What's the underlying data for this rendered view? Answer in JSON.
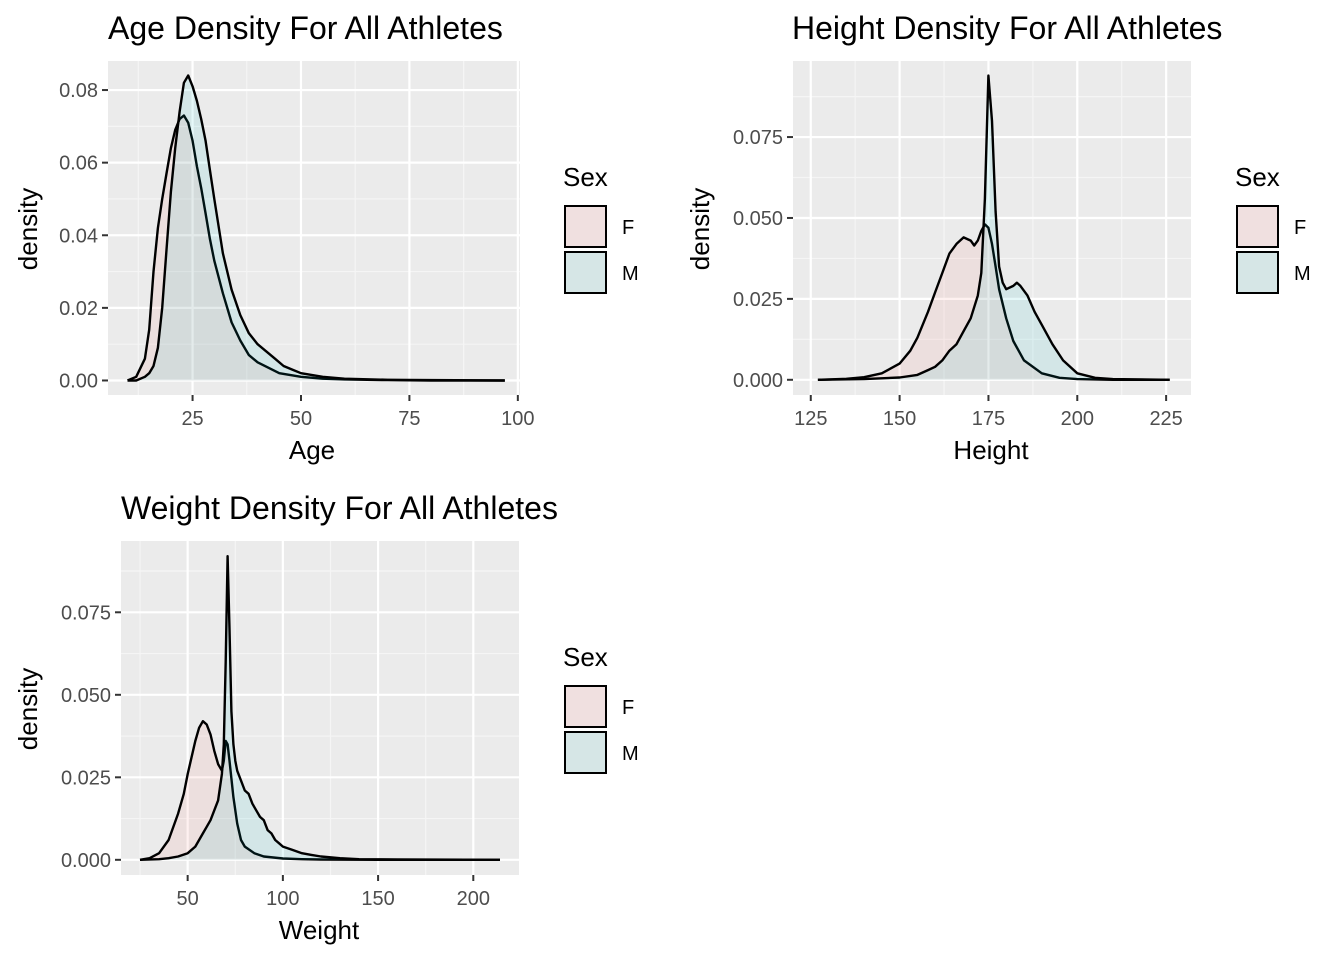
{
  "chart_data": [
    {
      "type": "area",
      "title": "Age Density For All Athletes",
      "xlabel": "Age",
      "ylabel": "density",
      "xlim": [
        5.5,
        100.5
      ],
      "ylim": [
        -0.004,
        0.088
      ],
      "xticks": [
        25,
        50,
        75,
        100
      ],
      "xtick_labels": [
        "25",
        "50",
        "75",
        "100"
      ],
      "yticks": [
        0,
        0.02,
        0.04,
        0.06,
        0.08
      ],
      "ytick_labels": [
        "0.00",
        "0.02",
        "0.04",
        "0.06",
        "0.08"
      ],
      "grid": true,
      "legend": {
        "title": "Sex",
        "position": "right",
        "entries": [
          "F",
          "M"
        ]
      },
      "series": [
        {
          "name": "F",
          "fill": "#f8766d",
          "x": [
            10,
            12,
            14,
            15,
            16,
            17,
            18,
            19,
            20,
            21,
            22,
            23,
            24,
            25,
            26,
            27,
            28,
            29,
            30,
            32,
            34,
            36,
            38,
            40,
            45,
            50,
            55,
            60,
            70,
            80,
            97
          ],
          "y": [
            0,
            0.001,
            0.006,
            0.014,
            0.03,
            0.042,
            0.05,
            0.057,
            0.064,
            0.069,
            0.072,
            0.073,
            0.071,
            0.066,
            0.059,
            0.053,
            0.046,
            0.039,
            0.033,
            0.024,
            0.016,
            0.011,
            0.007,
            0.005,
            0.002,
            0.001,
            0.0005,
            0.0003,
            0.0001,
            0,
            0
          ]
        },
        {
          "name": "M",
          "fill": "#00bfc4",
          "x": [
            10,
            12,
            14,
            15,
            16,
            17,
            18,
            19,
            20,
            21,
            22,
            23,
            24,
            25,
            26,
            27,
            28,
            29,
            30,
            32,
            34,
            36,
            38,
            40,
            42,
            44,
            46,
            48,
            50,
            55,
            60,
            70,
            80,
            97
          ],
          "y": [
            0,
            0,
            0.001,
            0.002,
            0.004,
            0.009,
            0.02,
            0.036,
            0.052,
            0.064,
            0.074,
            0.082,
            0.084,
            0.081,
            0.077,
            0.072,
            0.066,
            0.058,
            0.05,
            0.035,
            0.025,
            0.018,
            0.013,
            0.01,
            0.008,
            0.006,
            0.004,
            0.003,
            0.002,
            0.001,
            0.0005,
            0.0002,
            0.0001,
            0
          ]
        }
      ]
    },
    {
      "type": "area",
      "title": "Height Density For All Athletes",
      "xlabel": "Height",
      "ylabel": "density",
      "xlim": [
        120,
        232
      ],
      "ylim": [
        -0.0047,
        0.0985
      ],
      "xticks": [
        125,
        150,
        175,
        200,
        225
      ],
      "xtick_labels": [
        "125",
        "150",
        "175",
        "200",
        "225"
      ],
      "yticks": [
        0,
        0.025,
        0.05,
        0.075
      ],
      "ytick_labels": [
        "0.000",
        "0.025",
        "0.050",
        "0.075"
      ],
      "grid": true,
      "legend": {
        "title": "Sex",
        "position": "right",
        "entries": [
          "F",
          "M"
        ]
      },
      "series": [
        {
          "name": "F",
          "fill": "#f8766d",
          "x": [
            127,
            135,
            140,
            145,
            150,
            153,
            155,
            158,
            160,
            162,
            164,
            166,
            168,
            170,
            171,
            172,
            173,
            174,
            175,
            176,
            177,
            178,
            180,
            182,
            185,
            190,
            195,
            200,
            210,
            226
          ],
          "y": [
            0,
            0.0003,
            0.0008,
            0.002,
            0.005,
            0.009,
            0.013,
            0.021,
            0.027,
            0.033,
            0.039,
            0.042,
            0.044,
            0.043,
            0.0415,
            0.043,
            0.046,
            0.048,
            0.047,
            0.042,
            0.035,
            0.028,
            0.019,
            0.012,
            0.006,
            0.002,
            0.0006,
            0.0002,
            0,
            0
          ]
        },
        {
          "name": "M",
          "fill": "#00bfc4",
          "x": [
            127,
            140,
            150,
            155,
            158,
            160,
            162,
            164,
            166,
            168,
            170,
            172,
            173,
            174,
            175,
            176,
            177,
            178,
            179,
            180,
            182,
            183,
            184,
            186,
            188,
            190,
            193,
            196,
            200,
            205,
            210,
            226
          ],
          "y": [
            0,
            0.0002,
            0.0007,
            0.0015,
            0.003,
            0.004,
            0.006,
            0.009,
            0.011,
            0.015,
            0.019,
            0.026,
            0.033,
            0.056,
            0.094,
            0.08,
            0.052,
            0.035,
            0.03,
            0.028,
            0.029,
            0.03,
            0.029,
            0.026,
            0.021,
            0.017,
            0.011,
            0.006,
            0.002,
            0.0006,
            0.0002,
            0
          ]
        }
      ]
    },
    {
      "type": "area",
      "title": "Weight Density For All Athletes",
      "xlabel": "Weight",
      "ylabel": "density",
      "xlim": [
        15,
        224
      ],
      "ylim": [
        -0.0046,
        0.0966
      ],
      "xticks": [
        50,
        100,
        150,
        200
      ],
      "xtick_labels": [
        "50",
        "100",
        "150",
        "200"
      ],
      "yticks": [
        0,
        0.025,
        0.05,
        0.075
      ],
      "ytick_labels": [
        "0.000",
        "0.025",
        "0.050",
        "0.075"
      ],
      "grid": true,
      "legend": {
        "title": "Sex",
        "position": "right",
        "entries": [
          "F",
          "M"
        ]
      },
      "series": [
        {
          "name": "F",
          "fill": "#f8766d",
          "x": [
            25,
            30,
            35,
            40,
            45,
            48,
            50,
            52,
            54,
            56,
            58,
            60,
            62,
            64,
            66,
            68,
            69,
            70,
            71,
            72,
            74,
            76,
            78,
            80,
            85,
            90,
            100,
            110,
            120,
            150,
            214
          ],
          "y": [
            0,
            0.0005,
            0.002,
            0.006,
            0.014,
            0.02,
            0.026,
            0.031,
            0.036,
            0.04,
            0.042,
            0.041,
            0.038,
            0.033,
            0.029,
            0.027,
            0.03,
            0.036,
            0.035,
            0.03,
            0.019,
            0.011,
            0.006,
            0.004,
            0.002,
            0.001,
            0.0004,
            0.0002,
            0.0001,
            0,
            0
          ]
        },
        {
          "name": "M",
          "fill": "#00bfc4",
          "x": [
            25,
            35,
            40,
            45,
            50,
            54,
            56,
            58,
            60,
            62,
            64,
            66,
            68,
            69,
            70,
            71,
            72,
            73,
            74,
            75,
            76,
            78,
            80,
            82,
            84,
            86,
            88,
            90,
            92,
            94,
            96,
            98,
            100,
            105,
            110,
            115,
            120,
            130,
            140,
            160,
            214
          ],
          "y": [
            0,
            0.0002,
            0.0005,
            0.001,
            0.002,
            0.004,
            0.006,
            0.008,
            0.01,
            0.012,
            0.015,
            0.018,
            0.026,
            0.035,
            0.06,
            0.092,
            0.07,
            0.045,
            0.035,
            0.03,
            0.027,
            0.024,
            0.021,
            0.02,
            0.017,
            0.015,
            0.013,
            0.012,
            0.009,
            0.008,
            0.006,
            0.005,
            0.004,
            0.003,
            0.002,
            0.0015,
            0.001,
            0.0005,
            0.0002,
            0.0001,
            0
          ]
        }
      ]
    }
  ]
}
